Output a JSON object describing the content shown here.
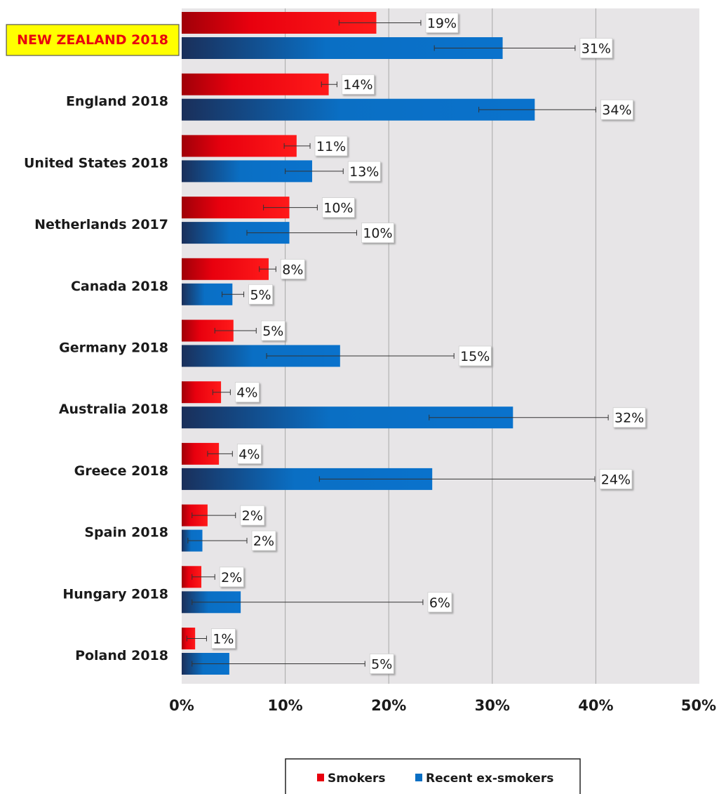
{
  "chart_data": {
    "type": "bar",
    "orientation": "horizontal",
    "highlight_category": "NEW ZEALAND 2018",
    "categories": [
      "NEW ZEALAND 2018",
      "England 2018",
      "United States 2018",
      "Netherlands 2017",
      "Canada 2018",
      "Germany 2018",
      "Australia 2018",
      "Greece 2018",
      "Spain 2018",
      "Hungary 2018",
      "Poland 2018"
    ],
    "series": [
      {
        "name": "Smokers",
        "color": "#e8000e",
        "values": [
          18.8,
          14.2,
          11.1,
          10.4,
          8.4,
          5.0,
          3.8,
          3.6,
          2.5,
          1.9,
          1.3
        ],
        "labels": [
          "19%",
          "14%",
          "11%",
          "10%",
          "8%",
          "5%",
          "4%",
          "4%",
          "2%",
          "2%",
          "1%"
        ],
        "error_low": [
          15.2,
          13.5,
          9.9,
          7.9,
          7.5,
          3.2,
          3.0,
          2.5,
          1.0,
          1.0,
          0.5
        ],
        "error_high": [
          23.1,
          15.0,
          12.4,
          13.1,
          9.1,
          7.2,
          4.7,
          4.9,
          5.2,
          3.2,
          2.4
        ]
      },
      {
        "name": "Recent ex-smokers",
        "color": "#0a6fc4",
        "values": [
          31.0,
          34.1,
          12.6,
          10.4,
          4.9,
          15.3,
          32.0,
          24.2,
          2.0,
          5.7,
          4.6
        ],
        "labels": [
          "31%",
          "34%",
          "13%",
          "10%",
          "5%",
          "15%",
          "32%",
          "24%",
          "2%",
          "6%",
          "5%"
        ],
        "error_low": [
          24.4,
          28.7,
          10.0,
          6.3,
          3.9,
          8.2,
          23.9,
          13.3,
          0.6,
          1.0,
          1.0
        ],
        "error_high": [
          38.0,
          40.0,
          15.6,
          16.9,
          6.0,
          26.3,
          41.2,
          39.9,
          6.3,
          23.3,
          17.7
        ]
      }
    ],
    "xlim": [
      0,
      50
    ],
    "x_ticks": [
      "0%",
      "10%",
      "20%",
      "30%",
      "40%",
      "50%"
    ],
    "grid": true,
    "legend_position": "bottom",
    "title": "",
    "xlabel": "",
    "ylabel": ""
  }
}
